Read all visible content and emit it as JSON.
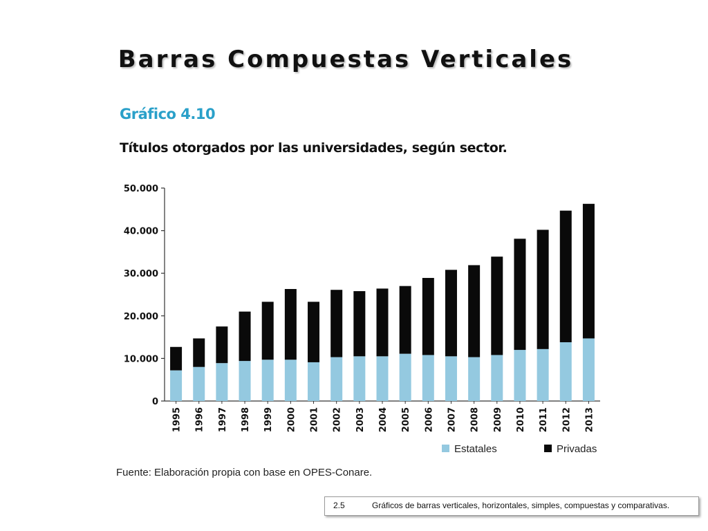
{
  "slide": {
    "title": "Barras Compuestas Verticales"
  },
  "figure": {
    "label": "Gráfico 4.10",
    "title": "Títulos otorgados por las universidades, según sector.",
    "source": "Fuente: Elaboración propia con base en OPES-Conare."
  },
  "footer": {
    "number": "2.5",
    "text": "Gráficos de barras verticales, horizontales, simples, compuestas y comparativas."
  },
  "chart_data": {
    "type": "bar",
    "stacked": true,
    "categories": [
      "1995",
      "1996",
      "1997",
      "1998",
      "1999",
      "2000",
      "2001",
      "2002",
      "2003",
      "2004",
      "2005",
      "2006",
      "2007",
      "2008",
      "2009",
      "2010",
      "2011",
      "2012",
      "2013"
    ],
    "series": [
      {
        "name": "Estatales",
        "color": "#94c9e0",
        "values": [
          7200,
          8000,
          8900,
          9400,
          9700,
          9700,
          9100,
          10300,
          10500,
          10500,
          11100,
          10800,
          10500,
          10300,
          10800,
          12000,
          12200,
          13800,
          14700
        ]
      },
      {
        "name": "Privadas",
        "color": "#0a0a0a",
        "values": [
          5500,
          6700,
          8600,
          11600,
          13600,
          16600,
          14200,
          15800,
          15300,
          15900,
          15900,
          18100,
          20300,
          21600,
          23100,
          26100,
          28000,
          30900,
          31600
        ]
      }
    ],
    "yticks": [
      "0",
      "10.000",
      "20.000",
      "30.000",
      "40.000",
      "50.000"
    ],
    "ylim": [
      0,
      50000
    ],
    "xlabel": "",
    "ylabel": "",
    "legend_position": "bottom-right",
    "grid": false
  }
}
